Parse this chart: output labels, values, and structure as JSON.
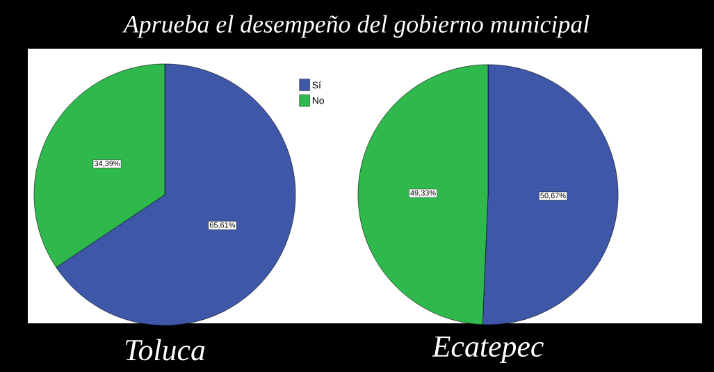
{
  "chart_data": {
    "type": "pie",
    "title": "Aprueba el desempeño del gobierno municipal",
    "categories": [
      "Sí",
      "No"
    ],
    "colors": [
      "#3f57a8",
      "#2fb84b"
    ],
    "legend": "top right",
    "series": [
      {
        "name": "Toluca",
        "values": [
          65.61,
          34.39
        ],
        "value_labels": [
          "65,61%",
          "34,39%"
        ]
      },
      {
        "name": "Ecatepec",
        "values": [
          50.67,
          49.33
        ],
        "value_labels": [
          "50,67%",
          "49,33%"
        ]
      }
    ]
  }
}
